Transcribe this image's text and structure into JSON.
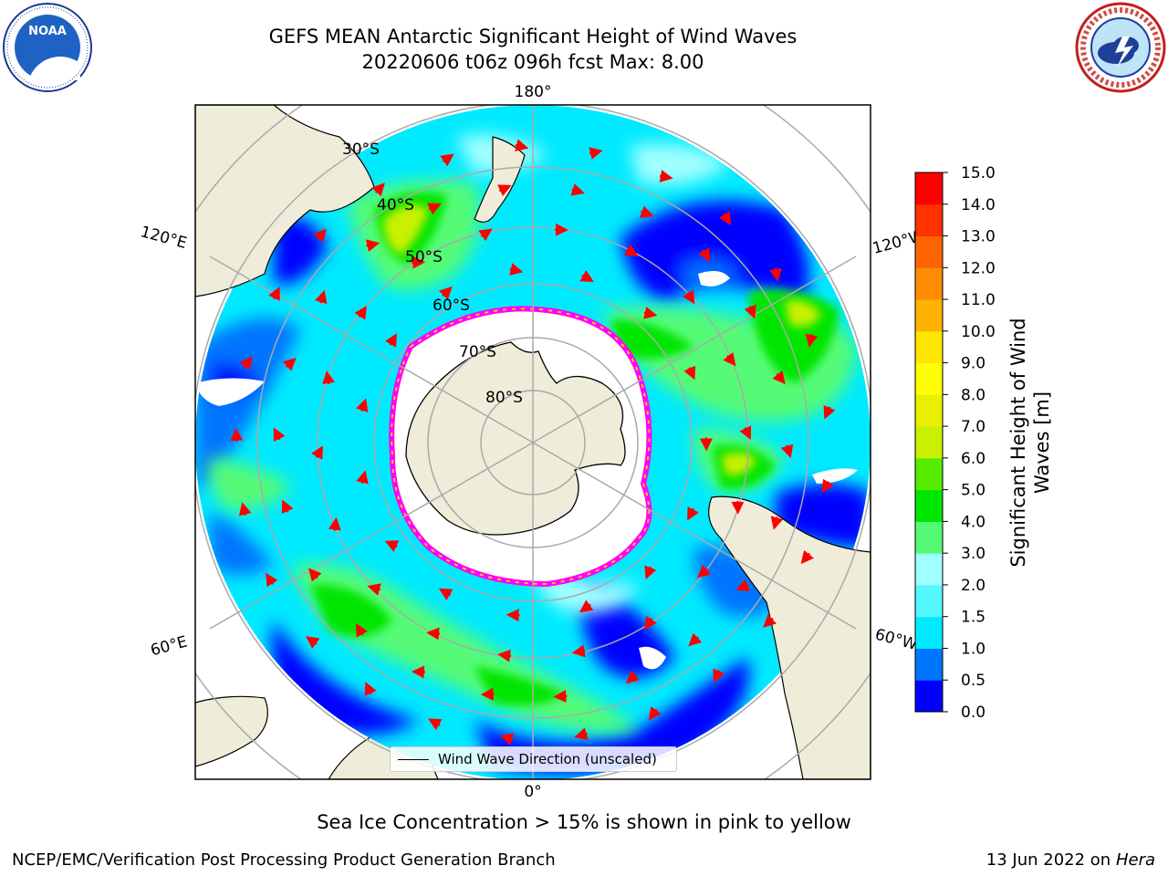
{
  "title": {
    "line1": "GEFS MEAN Antarctic Significant Height of Wind Waves",
    "line2": "20220606 t06z 096h fcst   Max: 8.00"
  },
  "map": {
    "projection": "south-polar-stereographic",
    "lon_labels": {
      "top": "180°",
      "bottom": "0°",
      "left_upper": "120°E",
      "right_upper": "120°W",
      "left_lower": "60°E",
      "right_lower": "60°W"
    },
    "lat_labels": [
      "30°S",
      "40°S",
      "50°S",
      "60°S",
      "70°S",
      "80°S"
    ],
    "legend_label": "Wind Wave Direction (unscaled)",
    "arrow_color": "#ff0000",
    "land_color": "#efedd9",
    "ice_edge_colors": [
      "#ff00ff",
      "#ffcc00"
    ]
  },
  "colorbar": {
    "label": "Significant Height of Wind Waves [m]",
    "ticks": [
      "0.0",
      "0.5",
      "1.0",
      "1.5",
      "2.0",
      "3.0",
      "4.0",
      "5.0",
      "6.0",
      "7.0",
      "8.0",
      "9.0",
      "10.0",
      "11.0",
      "12.0",
      "13.0",
      "14.0",
      "15.0"
    ],
    "colors": [
      "#0000ff",
      "#0075ff",
      "#00eaff",
      "#54f8ff",
      "#a0ffff",
      "#55fb76",
      "#00e500",
      "#55ec00",
      "#c8f000",
      "#e8f000",
      "#ffff00",
      "#ffe600",
      "#ffb300",
      "#ff8c00",
      "#ff6400",
      "#ff3200",
      "#ff0000"
    ]
  },
  "footer": {
    "note": "Sea Ice Concentration > 15% is shown in pink to yellow",
    "left": "NCEP/EMC/Verification Post Processing Product Generation Branch",
    "right_date": "13 Jun 2022 on",
    "right_host": "Hera"
  },
  "logos": {
    "noaa": "NOAA",
    "nws": "NATIONAL WEATHER SERVICE"
  }
}
